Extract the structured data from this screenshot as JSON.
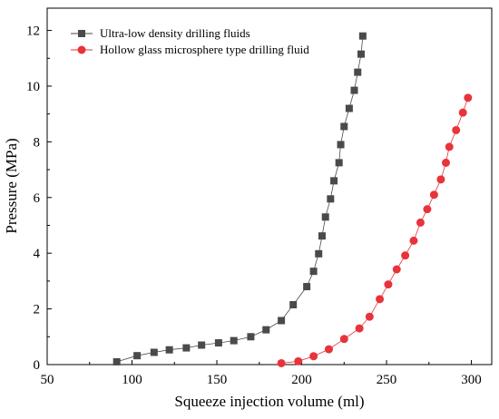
{
  "chart_data": {
    "type": "line",
    "xlabel": "Squeeze injection volume (ml)",
    "ylabel": "Pressure (MPa)",
    "xlim": [
      50,
      312
    ],
    "ylim": [
      0,
      12.8
    ],
    "x_ticks": [
      50,
      100,
      150,
      200,
      250,
      300
    ],
    "y_ticks": [
      0,
      2,
      4,
      6,
      8,
      10,
      12
    ],
    "grid": false,
    "legend_position": "top-left",
    "series": [
      {
        "name": "Ultra-low density drilling fluids",
        "marker": "square",
        "color": "#4a4a4a",
        "x": [
          91,
          103,
          113,
          122,
          132,
          141,
          151,
          160,
          170,
          179,
          188,
          195,
          203,
          207,
          210,
          212,
          214,
          217,
          219,
          222,
          223,
          225,
          228,
          231,
          233,
          235,
          236
        ],
        "y": [
          0.1,
          0.32,
          0.44,
          0.53,
          0.6,
          0.7,
          0.78,
          0.86,
          1.0,
          1.25,
          1.58,
          2.15,
          2.8,
          3.35,
          3.98,
          4.62,
          5.3,
          5.95,
          6.6,
          7.25,
          7.9,
          8.55,
          9.2,
          9.85,
          10.5,
          11.15,
          11.8
        ]
      },
      {
        "name": "Hollow glass microsphere type drilling fluid",
        "marker": "circle",
        "color": "#e8333a",
        "x": [
          188,
          198,
          207,
          216,
          225,
          234,
          240,
          246,
          251,
          256,
          261,
          266,
          270,
          274,
          278,
          282,
          285,
          287,
          291,
          295,
          298
        ],
        "y": [
          0.05,
          0.12,
          0.3,
          0.55,
          0.92,
          1.3,
          1.72,
          2.35,
          2.88,
          3.42,
          3.92,
          4.45,
          5.1,
          5.58,
          6.1,
          6.65,
          7.25,
          7.82,
          8.42,
          9.05,
          9.58
        ]
      }
    ]
  }
}
